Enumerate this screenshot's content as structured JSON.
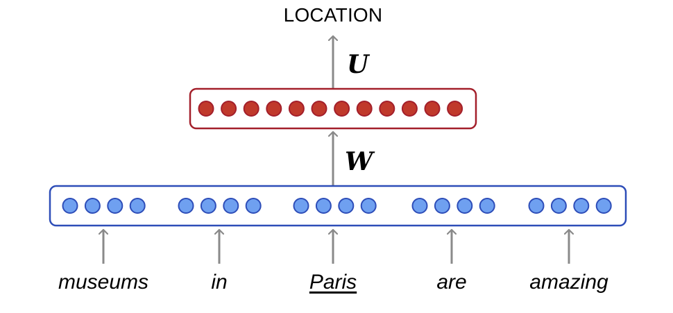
{
  "output": {
    "label": "LOCATION"
  },
  "weights": {
    "upper": "U",
    "lower": "W"
  },
  "hidden_layer": {
    "units": 12,
    "color": "#c0392b",
    "border": "#a31f2a"
  },
  "input_layer": {
    "units_per_word": 4,
    "color": "#6fa0f0",
    "border": "#2d4db8"
  },
  "words": [
    {
      "text": "museums",
      "underlined": false
    },
    {
      "text": "in",
      "underlined": false
    },
    {
      "text": "Paris",
      "underlined": true
    },
    {
      "text": "are",
      "underlined": false
    },
    {
      "text": "amazing",
      "underlined": false
    }
  ],
  "colors": {
    "arrow": "#8a8a8a"
  }
}
